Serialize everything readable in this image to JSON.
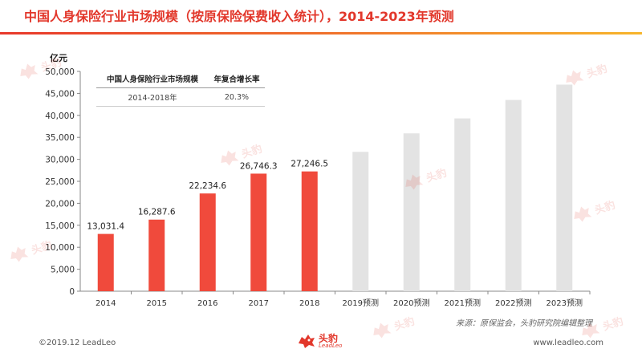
{
  "page": {
    "title": "中国人身保险行业市场规模（按原保险保费收入统计），2014-2023年预测",
    "unit": "亿元",
    "source": "来源：原保监会，头豹研究院编辑整理",
    "footer_left": "©2019.12 LeadLeo",
    "footer_right": "www.leadleo.com",
    "logo_cn": "头豹",
    "logo_en": "LeadLeo"
  },
  "legend_table": {
    "header": [
      "中国人身保险行业市场规模",
      "年复合增长率"
    ],
    "row": [
      "2014-2018年",
      "20.3%"
    ]
  },
  "chart_data": {
    "type": "bar",
    "categories": [
      "2014",
      "2015",
      "2016",
      "2017",
      "2018",
      "2019预测",
      "2020预测",
      "2021预测",
      "2022预测",
      "2023预测"
    ],
    "values": [
      13031.4,
      16287.6,
      22234.6,
      26746.3,
      27246.5,
      31700,
      35900,
      39300,
      43500,
      47000
    ],
    "data_labels": [
      "13,031.4",
      "16,287.6",
      "22,234.6",
      "26,746.3",
      "27,246.5",
      "",
      "",
      "",
      "",
      ""
    ],
    "bar_colors": [
      "#f04a3c",
      "#f04a3c",
      "#f04a3c",
      "#f04a3c",
      "#f04a3c",
      "#e3e3e3",
      "#e3e3e3",
      "#e3e3e3",
      "#e3e3e3",
      "#e3e3e3"
    ],
    "ylim": [
      0,
      50000
    ],
    "yticks": [
      0,
      5000,
      10000,
      15000,
      20000,
      25000,
      30000,
      35000,
      40000,
      45000,
      50000
    ],
    "ytick_labels": [
      "0",
      "5,000",
      "10,000",
      "15,000",
      "20,000",
      "25,000",
      "30,000",
      "35,000",
      "40,000",
      "45,000",
      "50,000"
    ],
    "grid": false,
    "legend": "none"
  },
  "colors": {
    "accent": "#e2372b",
    "actual_bar": "#f04a3c",
    "forecast_bar": "#e3e3e3"
  }
}
